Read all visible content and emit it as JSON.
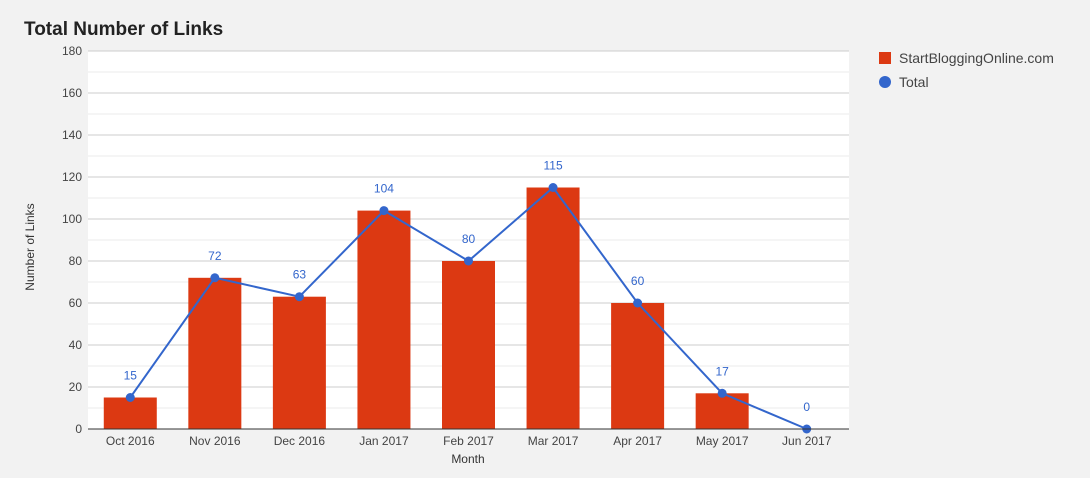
{
  "title": "Total Number of Links",
  "colors": {
    "bar": "#dc3912",
    "line": "#3366cc",
    "label": "#3366cc",
    "grid": "#cccccc",
    "axis": "#333333"
  },
  "chart_data": {
    "type": "bar",
    "title": "Total Number of Links",
    "xlabel": "Month",
    "ylabel": "Number of Links",
    "ylim": [
      0,
      180
    ],
    "yticks": [
      0,
      20,
      40,
      60,
      80,
      100,
      120,
      140,
      160,
      180
    ],
    "categories": [
      "Oct 2016",
      "Nov 2016",
      "Dec 2016",
      "Jan 2017",
      "Feb 2017",
      "Mar 2017",
      "Apr 2017",
      "May 2017",
      "Jun 2017"
    ],
    "series": [
      {
        "name": "StartBloggingOnline.com",
        "type": "bar",
        "color": "#dc3912",
        "values": [
          15,
          72,
          63,
          104,
          80,
          115,
          60,
          17,
          0
        ]
      },
      {
        "name": "Total",
        "type": "line",
        "color": "#3366cc",
        "values": [
          15,
          72,
          63,
          104,
          80,
          115,
          60,
          17,
          0
        ]
      }
    ],
    "data_labels": [
      "15",
      "72",
      "63",
      "104",
      "80",
      "115",
      "60",
      "17",
      "0"
    ],
    "grid": true,
    "legend": "right"
  }
}
